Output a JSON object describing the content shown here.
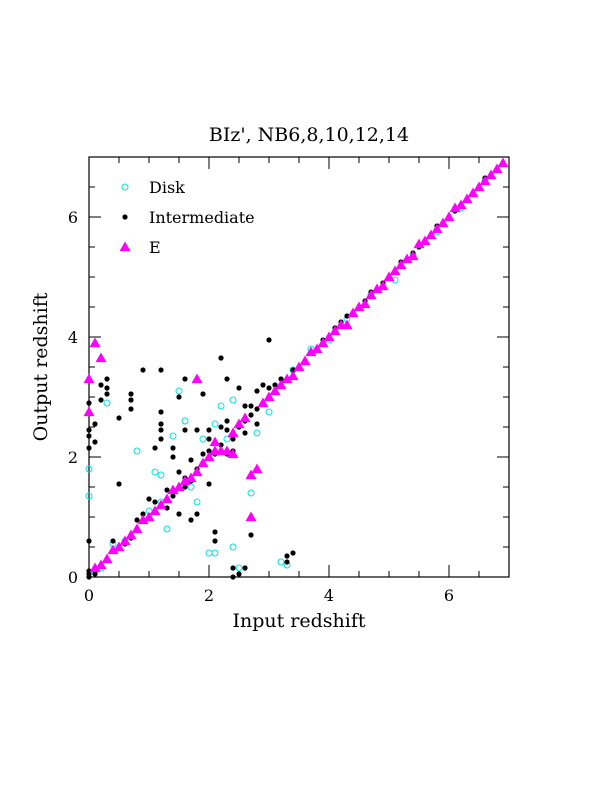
{
  "chart_data": {
    "type": "scatter",
    "title": "BIz', NB6,8,10,12,14",
    "xlabel": "Input redshift",
    "ylabel": "Output redshift",
    "xlim": [
      0,
      7
    ],
    "ylim": [
      0,
      7
    ],
    "xticks": [
      "0",
      "2",
      "4",
      "6"
    ],
    "yticks": [
      "0",
      "2",
      "4",
      "6"
    ],
    "grid": false,
    "legend_position": "top-left",
    "series": [
      {
        "name": "Disk",
        "marker": "open-circle",
        "color": "#00e5e5",
        "points": [
          [
            0.0,
            1.8
          ],
          [
            0.0,
            1.35
          ],
          [
            0.1,
            0.1
          ],
          [
            0.2,
            0.15
          ],
          [
            0.3,
            2.9
          ],
          [
            0.4,
            0.55
          ],
          [
            0.6,
            0.6
          ],
          [
            0.8,
            2.1
          ],
          [
            1.0,
            1.1
          ],
          [
            1.1,
            1.75
          ],
          [
            1.2,
            1.25
          ],
          [
            1.2,
            1.7
          ],
          [
            1.3,
            0.8
          ],
          [
            1.4,
            2.35
          ],
          [
            1.5,
            3.1
          ],
          [
            1.6,
            2.6
          ],
          [
            1.7,
            1.5
          ],
          [
            1.8,
            1.25
          ],
          [
            1.9,
            2.3
          ],
          [
            2.0,
            0.4
          ],
          [
            2.1,
            0.4
          ],
          [
            2.1,
            2.55
          ],
          [
            2.2,
            2.85
          ],
          [
            2.3,
            2.3
          ],
          [
            2.4,
            2.95
          ],
          [
            2.4,
            0.5
          ],
          [
            2.5,
            0.15
          ],
          [
            2.7,
            1.4
          ],
          [
            2.8,
            2.4
          ],
          [
            3.0,
            2.75
          ],
          [
            3.2,
            0.25
          ],
          [
            3.3,
            0.2
          ],
          [
            3.4,
            3.45
          ],
          [
            3.7,
            3.8
          ],
          [
            4.0,
            3.95
          ],
          [
            4.3,
            4.3
          ],
          [
            4.7,
            4.7
          ],
          [
            5.1,
            4.95
          ],
          [
            5.4,
            5.35
          ],
          [
            5.8,
            5.75
          ],
          [
            6.2,
            6.15
          ],
          [
            6.6,
            6.6
          ]
        ]
      },
      {
        "name": "Intermediate",
        "marker": "filled-circle",
        "color": "#000000",
        "points": [
          [
            0.0,
            0.0
          ],
          [
            0.0,
            0.05
          ],
          [
            0.0,
            0.1
          ],
          [
            0.0,
            0.6
          ],
          [
            0.0,
            2.15
          ],
          [
            0.0,
            2.35
          ],
          [
            0.0,
            2.45
          ],
          [
            0.0,
            2.9
          ],
          [
            0.1,
            0.05
          ],
          [
            0.1,
            2.25
          ],
          [
            0.1,
            2.55
          ],
          [
            0.2,
            2.95
          ],
          [
            0.2,
            3.2
          ],
          [
            0.3,
            3.05
          ],
          [
            0.3,
            3.15
          ],
          [
            0.3,
            3.3
          ],
          [
            0.3,
            0.3
          ],
          [
            0.4,
            0.45
          ],
          [
            0.4,
            0.6
          ],
          [
            0.5,
            1.55
          ],
          [
            0.5,
            2.65
          ],
          [
            0.6,
            0.55
          ],
          [
            0.7,
            2.8
          ],
          [
            0.7,
            2.95
          ],
          [
            0.7,
            3.05
          ],
          [
            0.7,
            0.65
          ],
          [
            0.8,
            0.8
          ],
          [
            0.8,
            0.95
          ],
          [
            0.9,
            3.45
          ],
          [
            0.9,
            1.05
          ],
          [
            1.0,
            1.0
          ],
          [
            1.0,
            1.3
          ],
          [
            1.1,
            2.15
          ],
          [
            1.1,
            1.25
          ],
          [
            1.2,
            2.3
          ],
          [
            1.2,
            2.45
          ],
          [
            1.2,
            2.55
          ],
          [
            1.2,
            2.75
          ],
          [
            1.2,
            3.45
          ],
          [
            1.3,
            1.15
          ],
          [
            1.3,
            1.45
          ],
          [
            1.4,
            2.0
          ],
          [
            1.4,
            2.15
          ],
          [
            1.4,
            1.35
          ],
          [
            1.5,
            1.75
          ],
          [
            1.5,
            1.05
          ],
          [
            1.5,
            3.0
          ],
          [
            1.6,
            1.5
          ],
          [
            1.6,
            1.65
          ],
          [
            1.6,
            2.45
          ],
          [
            1.6,
            3.3
          ],
          [
            1.7,
            1.95
          ],
          [
            1.7,
            1.6
          ],
          [
            1.7,
            0.95
          ],
          [
            1.8,
            2.45
          ],
          [
            1.8,
            1.8
          ],
          [
            1.8,
            1.05
          ],
          [
            1.9,
            2.05
          ],
          [
            1.9,
            1.9
          ],
          [
            1.9,
            3.05
          ],
          [
            2.0,
            2.1
          ],
          [
            2.0,
            2.3
          ],
          [
            2.0,
            2.45
          ],
          [
            2.0,
            1.55
          ],
          [
            2.1,
            0.6
          ],
          [
            2.1,
            0.75
          ],
          [
            2.1,
            2.05
          ],
          [
            2.2,
            2.2
          ],
          [
            2.2,
            2.5
          ],
          [
            2.2,
            3.65
          ],
          [
            2.3,
            2.45
          ],
          [
            2.3,
            2.6
          ],
          [
            2.3,
            2.05
          ],
          [
            2.3,
            3.3
          ],
          [
            2.4,
            0.0
          ],
          [
            2.4,
            0.15
          ],
          [
            2.4,
            2.1
          ],
          [
            2.4,
            2.3
          ],
          [
            2.5,
            2.5
          ],
          [
            2.5,
            0.05
          ],
          [
            2.5,
            3.15
          ],
          [
            2.6,
            2.6
          ],
          [
            2.6,
            2.85
          ],
          [
            2.6,
            2.4
          ],
          [
            2.6,
            0.15
          ],
          [
            2.7,
            2.7
          ],
          [
            2.7,
            2.85
          ],
          [
            2.7,
            0.7
          ],
          [
            2.8,
            2.8
          ],
          [
            2.8,
            3.1
          ],
          [
            2.8,
            2.55
          ],
          [
            2.9,
            2.9
          ],
          [
            2.9,
            3.2
          ],
          [
            3.0,
            3.0
          ],
          [
            3.0,
            3.15
          ],
          [
            3.0,
            3.95
          ],
          [
            3.1,
            3.1
          ],
          [
            3.1,
            3.2
          ],
          [
            3.2,
            3.3
          ],
          [
            3.3,
            0.25
          ],
          [
            3.3,
            0.35
          ],
          [
            3.4,
            3.45
          ],
          [
            3.4,
            0.4
          ],
          [
            3.5,
            3.5
          ],
          [
            3.6,
            3.6
          ],
          [
            3.7,
            3.75
          ],
          [
            3.8,
            3.8
          ],
          [
            3.9,
            3.95
          ],
          [
            4.0,
            4.0
          ],
          [
            4.1,
            4.15
          ],
          [
            4.2,
            4.25
          ],
          [
            4.3,
            4.35
          ],
          [
            4.4,
            4.4
          ],
          [
            4.5,
            4.5
          ],
          [
            4.6,
            4.6
          ],
          [
            4.7,
            4.75
          ],
          [
            4.8,
            4.8
          ],
          [
            4.9,
            4.9
          ],
          [
            5.0,
            5.0
          ],
          [
            5.1,
            5.1
          ],
          [
            5.2,
            5.25
          ],
          [
            5.3,
            5.3
          ],
          [
            5.4,
            5.4
          ],
          [
            5.5,
            5.5
          ],
          [
            5.6,
            5.6
          ],
          [
            5.7,
            5.7
          ],
          [
            5.8,
            5.85
          ],
          [
            5.9,
            5.9
          ],
          [
            6.0,
            6.0
          ],
          [
            6.1,
            6.1
          ],
          [
            6.2,
            6.2
          ],
          [
            6.3,
            6.3
          ],
          [
            6.4,
            6.4
          ],
          [
            6.5,
            6.5
          ],
          [
            6.6,
            6.65
          ],
          [
            6.7,
            6.7
          ],
          [
            6.8,
            6.8
          ],
          [
            6.9,
            6.9
          ]
        ]
      },
      {
        "name": "E",
        "marker": "filled-triangle",
        "color": "#ff00ff",
        "points": [
          [
            0.0,
            3.3
          ],
          [
            0.0,
            2.75
          ],
          [
            0.1,
            3.9
          ],
          [
            0.2,
            3.65
          ],
          [
            0.1,
            0.15
          ],
          [
            0.2,
            0.2
          ],
          [
            0.3,
            0.3
          ],
          [
            0.4,
            0.45
          ],
          [
            0.5,
            0.5
          ],
          [
            0.6,
            0.6
          ],
          [
            0.7,
            0.7
          ],
          [
            0.8,
            0.8
          ],
          [
            0.9,
            0.95
          ],
          [
            1.0,
            1.0
          ],
          [
            1.1,
            1.1
          ],
          [
            1.2,
            1.2
          ],
          [
            1.3,
            1.3
          ],
          [
            1.4,
            1.45
          ],
          [
            1.5,
            1.5
          ],
          [
            1.6,
            1.6
          ],
          [
            1.7,
            1.65
          ],
          [
            1.8,
            1.75
          ],
          [
            1.9,
            1.9
          ],
          [
            2.0,
            2.0
          ],
          [
            2.1,
            2.1
          ],
          [
            2.1,
            2.25
          ],
          [
            2.2,
            2.1
          ],
          [
            2.3,
            2.1
          ],
          [
            2.4,
            2.05
          ],
          [
            2.4,
            2.4
          ],
          [
            2.5,
            2.55
          ],
          [
            2.6,
            2.65
          ],
          [
            2.7,
            1.7
          ],
          [
            2.7,
            1.0
          ],
          [
            2.8,
            1.8
          ],
          [
            1.8,
            3.3
          ],
          [
            2.9,
            2.9
          ],
          [
            3.0,
            3.0
          ],
          [
            3.1,
            3.1
          ],
          [
            3.2,
            3.2
          ],
          [
            3.3,
            3.3
          ],
          [
            3.4,
            3.35
          ],
          [
            3.5,
            3.5
          ],
          [
            3.6,
            3.6
          ],
          [
            3.7,
            3.75
          ],
          [
            3.8,
            3.8
          ],
          [
            3.9,
            3.9
          ],
          [
            4.0,
            4.0
          ],
          [
            4.1,
            4.1
          ],
          [
            4.2,
            4.2
          ],
          [
            4.3,
            4.2
          ],
          [
            4.4,
            4.4
          ],
          [
            4.5,
            4.5
          ],
          [
            4.6,
            4.55
          ],
          [
            4.7,
            4.7
          ],
          [
            4.8,
            4.8
          ],
          [
            4.9,
            4.85
          ],
          [
            5.0,
            5.0
          ],
          [
            5.1,
            5.1
          ],
          [
            5.2,
            5.2
          ],
          [
            5.3,
            5.3
          ],
          [
            5.4,
            5.35
          ],
          [
            5.5,
            5.55
          ],
          [
            5.6,
            5.6
          ],
          [
            5.7,
            5.7
          ],
          [
            5.8,
            5.8
          ],
          [
            5.9,
            5.9
          ],
          [
            6.0,
            6.0
          ],
          [
            6.1,
            6.15
          ],
          [
            6.2,
            6.2
          ],
          [
            6.3,
            6.3
          ],
          [
            6.4,
            6.4
          ],
          [
            6.5,
            6.5
          ],
          [
            6.6,
            6.6
          ],
          [
            6.7,
            6.7
          ],
          [
            6.8,
            6.8
          ],
          [
            6.9,
            6.9
          ]
        ]
      }
    ]
  }
}
